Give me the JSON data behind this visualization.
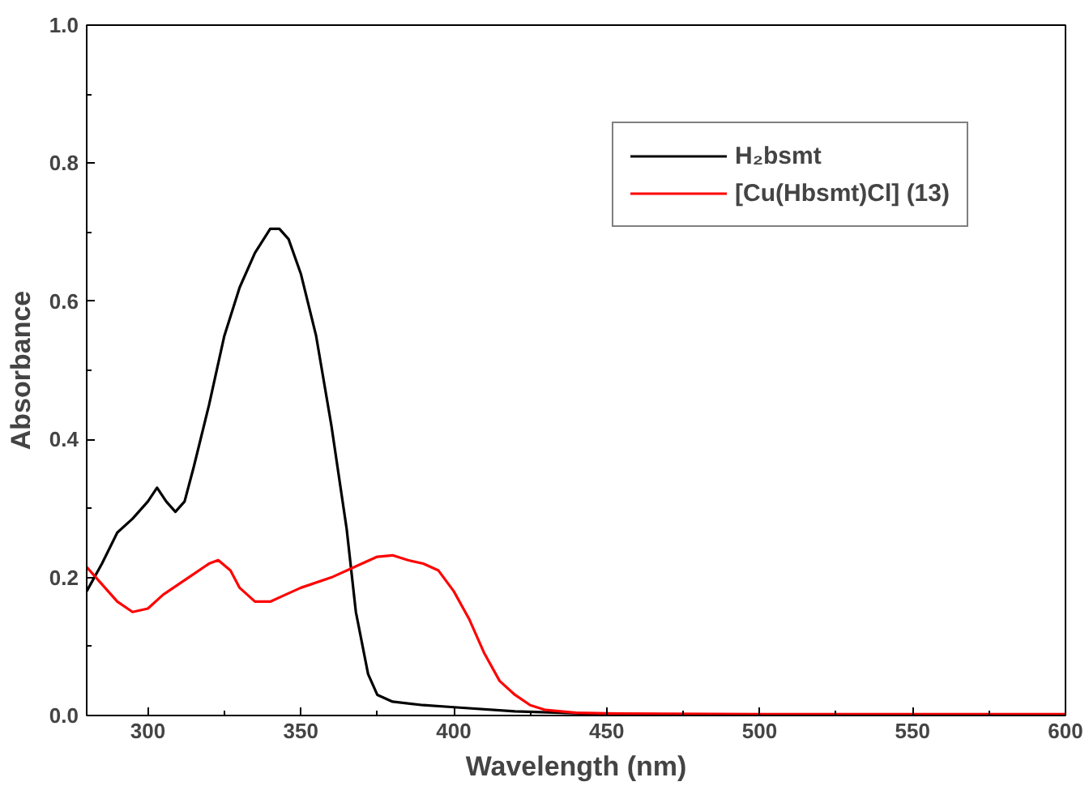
{
  "chart_data": {
    "type": "line",
    "xlabel": "Wavelength (nm)",
    "ylabel": "Absorbance",
    "xlim": [
      280,
      600
    ],
    "xticks": [
      300,
      350,
      400,
      450,
      500,
      550,
      600
    ],
    "ylim": [
      0,
      1.0
    ],
    "yticks": [
      {
        "value": 0,
        "label": "0.0"
      },
      0.2,
      0.4,
      0.6,
      0.8,
      {
        "value": 1.0,
        "label": "1.0"
      }
    ],
    "grid": false,
    "legend": "top right",
    "marker": "none",
    "line_style": "solid",
    "series": [
      {
        "name": "H₂bsmt",
        "color": "#000000",
        "x": [
          280,
          285,
          290,
          295,
          300,
          303,
          306,
          309,
          312,
          315,
          320,
          325,
          330,
          335,
          340,
          343,
          346,
          350,
          355,
          360,
          365,
          368,
          372,
          375,
          380,
          390,
          400,
          420,
          450,
          500,
          550,
          600
        ],
        "values": [
          0.18,
          0.22,
          0.265,
          0.285,
          0.31,
          0.33,
          0.31,
          0.295,
          0.31,
          0.36,
          0.45,
          0.55,
          0.62,
          0.67,
          0.705,
          0.705,
          0.69,
          0.64,
          0.55,
          0.42,
          0.27,
          0.15,
          0.06,
          0.03,
          0.02,
          0.015,
          0.012,
          0.006,
          0.002,
          0.001,
          0.001,
          0.001
        ]
      },
      {
        "name": "[Cu(Hbsmt)Cl] (13)",
        "color": "#ff0000",
        "x": [
          280,
          285,
          290,
          295,
          300,
          305,
          310,
          315,
          320,
          323,
          327,
          330,
          335,
          340,
          345,
          350,
          360,
          370,
          375,
          380,
          385,
          390,
          395,
          400,
          405,
          410,
          415,
          420,
          425,
          430,
          440,
          450,
          500,
          550,
          600
        ],
        "values": [
          0.215,
          0.19,
          0.165,
          0.15,
          0.155,
          0.175,
          0.19,
          0.205,
          0.22,
          0.225,
          0.21,
          0.185,
          0.165,
          0.165,
          0.175,
          0.185,
          0.2,
          0.22,
          0.23,
          0.232,
          0.225,
          0.22,
          0.21,
          0.18,
          0.14,
          0.09,
          0.05,
          0.03,
          0.015,
          0.008,
          0.004,
          0.003,
          0.002,
          0.002,
          0.002
        ]
      }
    ]
  }
}
